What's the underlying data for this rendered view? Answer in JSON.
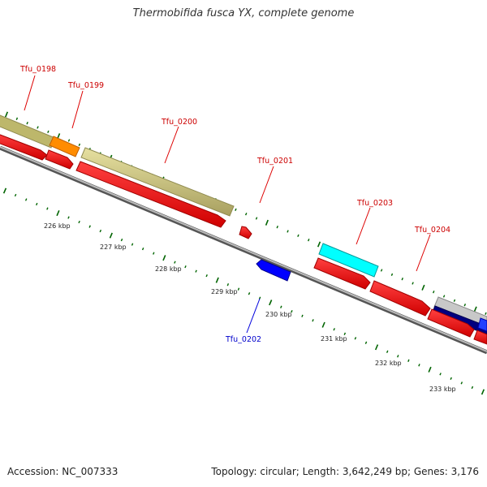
{
  "title": "Thermobifida fusca YX, complete genome",
  "footer": {
    "accession": "Accession: NC_007333",
    "summary": "Topology: circular; Length: 3,642,249 bp; Genes: 3,176"
  },
  "colors": {
    "cds_forward": "#ff0000",
    "cds_reverse": "#0000ff",
    "label_forward": "#cc0000",
    "label_reverse": "#0000cc",
    "feature_khaki": "#bdb76b",
    "feature_orange": "#ff8c00",
    "feature_cyan": "#00ffff",
    "feature_navy": "#000080",
    "feature_grey": "#c0c0c0",
    "tick_green": "#006400",
    "backbone": "#808080"
  },
  "genes": [
    {
      "name": "Tfu_0198",
      "strand": "forward",
      "color": "red"
    },
    {
      "name": "Tfu_0199",
      "strand": "forward",
      "color": "red"
    },
    {
      "name": "Tfu_0200",
      "strand": "forward",
      "color": "red"
    },
    {
      "name": "Tfu_0201",
      "strand": "forward",
      "color": "red"
    },
    {
      "name": "Tfu_0202",
      "strand": "reverse",
      "color": "blue"
    },
    {
      "name": "Tfu_0203",
      "strand": "forward",
      "color": "red"
    },
    {
      "name": "Tfu_0204",
      "strand": "forward",
      "color": "red"
    }
  ],
  "scale_labels": [
    "226 kbp",
    "227 kbp",
    "228 kbp",
    "229 kbp",
    "230 kbp",
    "231 kbp",
    "232 kbp",
    "233 kbp"
  ]
}
